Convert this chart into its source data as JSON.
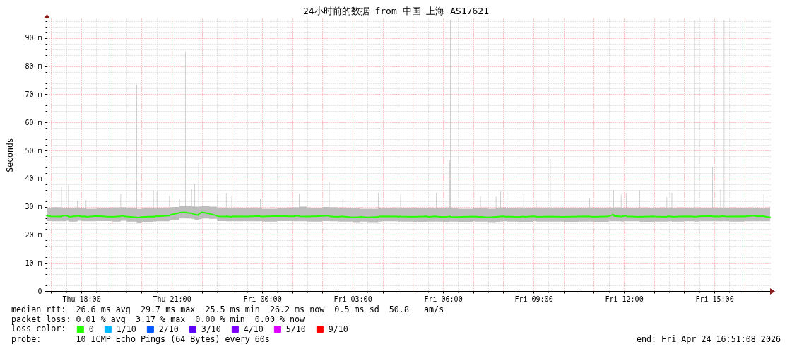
{
  "chart_data": {
    "type": "line",
    "title": "24小时前的数据 from 中国 上海 AS17621",
    "ylabel": "Seconds",
    "xlim": [
      "2026-04-23T16:51",
      "2026-04-24T16:51"
    ],
    "xticks": [
      {
        "value": "2026-04-23T17:00",
        "label": null
      },
      {
        "value": "2026-04-23T18:00",
        "label": "Thu 18:00"
      },
      {
        "value": "2026-04-23T19:00",
        "label": null
      },
      {
        "value": "2026-04-23T20:00",
        "label": null
      },
      {
        "value": "2026-04-23T21:00",
        "label": "Thu 21:00"
      },
      {
        "value": "2026-04-23T22:00",
        "label": null
      },
      {
        "value": "2026-04-23T23:00",
        "label": null
      },
      {
        "value": "2026-04-24T00:00",
        "label": "Fri 00:00"
      },
      {
        "value": "2026-04-24T01:00",
        "label": null
      },
      {
        "value": "2026-04-24T02:00",
        "label": null
      },
      {
        "value": "2026-04-24T03:00",
        "label": "Fri 03:00"
      },
      {
        "value": "2026-04-24T04:00",
        "label": null
      },
      {
        "value": "2026-04-24T05:00",
        "label": null
      },
      {
        "value": "2026-04-24T06:00",
        "label": "Fri 06:00"
      },
      {
        "value": "2026-04-24T07:00",
        "label": null
      },
      {
        "value": "2026-04-24T08:00",
        "label": null
      },
      {
        "value": "2026-04-24T09:00",
        "label": "Fri 09:00"
      },
      {
        "value": "2026-04-24T10:00",
        "label": null
      },
      {
        "value": "2026-04-24T11:00",
        "label": null
      },
      {
        "value": "2026-04-24T12:00",
        "label": "Fri 12:00"
      },
      {
        "value": "2026-04-24T13:00",
        "label": null
      },
      {
        "value": "2026-04-24T14:00",
        "label": null
      },
      {
        "value": "2026-04-24T15:00",
        "label": "Fri 15:00"
      },
      {
        "value": "2026-04-24T16:00",
        "label": null
      }
    ],
    "ylim": [
      0,
      97
    ],
    "yticks": [
      0,
      {
        "value": 10,
        "label": "10 m"
      },
      {
        "value": 20,
        "label": "20 m"
      },
      {
        "value": 30,
        "label": "30 m"
      },
      {
        "value": 40,
        "label": "40 m"
      },
      {
        "value": 50,
        "label": "50 m"
      },
      {
        "value": 60,
        "label": "60 m"
      },
      {
        "value": 70,
        "label": "70 m"
      },
      {
        "value": 80,
        "label": "80 m"
      },
      {
        "value": 90,
        "label": "90 m"
      }
    ],
    "grid": true,
    "legend": "bottom",
    "legend_title": "loss color:",
    "series": [
      {
        "name": "0",
        "color": "#26ff00",
        "x": [
          "2026-04-23T16:51",
          "2026-04-23T17:00",
          "2026-04-23T17:20",
          "2026-04-23T17:21",
          "2026-04-23T17:30",
          "2026-04-23T17:34",
          "2026-04-23T17:35",
          "2026-04-23T17:52",
          "2026-04-23T17:53",
          "2026-04-23T18:00",
          "2026-04-23T18:09",
          "2026-04-23T18:10",
          "2026-04-23T18:30",
          "2026-04-23T19:00",
          "2026-04-23T19:18",
          "2026-04-23T19:19",
          "2026-04-23T19:30",
          "2026-04-23T19:50",
          "2026-04-23T19:51",
          "2026-04-23T20:00",
          "2026-04-23T20:23",
          "2026-04-23T20:24",
          "2026-04-23T20:30",
          "2026-04-23T20:31",
          "2026-04-23T20:55",
          "2026-04-23T20:56",
          "2026-04-23T21:00",
          "2026-04-23T21:15",
          "2026-04-23T21:16",
          "2026-04-23T21:27",
          "2026-04-23T21:28",
          "2026-04-23T21:30",
          "2026-04-23T21:39",
          "2026-04-23T21:40",
          "2026-04-23T21:45",
          "2026-04-23T21:46",
          "2026-04-23T21:53",
          "2026-04-23T21:54",
          "2026-04-23T22:00",
          "2026-04-23T22:15",
          "2026-04-23T22:30",
          "2026-04-23T22:31",
          "2026-04-23T22:32",
          "2026-04-23T22:48",
          "2026-04-23T22:49",
          "2026-04-23T22:59",
          "2026-04-23T23:00",
          "2026-04-23T23:30",
          "2026-04-23T23:56",
          "2026-04-23T23:57",
          "2026-04-24T00:00",
          "2026-04-24T00:30",
          "2026-04-24T01:00",
          "2026-04-24T01:13",
          "2026-04-24T01:14",
          "2026-04-24T01:30",
          "2026-04-24T02:00",
          "2026-04-24T02:13",
          "2026-04-24T02:14",
          "2026-04-24T02:30",
          "2026-04-24T02:40",
          "2026-04-24T02:41",
          "2026-04-24T03:00",
          "2026-04-24T03:14",
          "2026-04-24T03:15",
          "2026-04-24T03:30",
          "2026-04-24T03:51",
          "2026-04-24T03:52",
          "2026-04-24T04:00",
          "2026-04-24T04:30",
          "2026-04-24T04:31",
          "2026-04-24T04:35",
          "2026-04-24T04:36",
          "2026-04-24T05:00",
          "2026-04-24T05:28",
          "2026-04-24T05:29",
          "2026-04-24T05:30",
          "2026-04-24T05:46",
          "2026-04-24T05:47",
          "2026-04-24T06:00",
          "2026-04-24T06:13",
          "2026-04-24T06:14",
          "2026-04-24T06:15",
          "2026-04-24T06:30",
          "2026-04-24T07:00",
          "2026-04-24T07:03",
          "2026-04-24T07:04",
          "2026-04-24T07:14",
          "2026-04-24T07:15",
          "2026-04-24T07:30",
          "2026-04-24T07:45",
          "2026-04-24T07:46",
          "2026-04-24T07:54",
          "2026-04-24T07:55",
          "2026-04-24T08:00",
          "2026-04-24T08:07",
          "2026-04-24T08:08",
          "2026-04-24T08:30",
          "2026-04-24T08:40",
          "2026-04-24T08:41",
          "2026-04-24T09:00",
          "2026-04-24T09:05",
          "2026-04-24T09:06",
          "2026-04-24T09:30",
          "2026-04-24T09:33",
          "2026-04-24T09:34",
          "2026-04-24T10:00",
          "2026-04-24T10:30",
          "2026-04-24T10:51",
          "2026-04-24T10:52",
          "2026-04-24T11:00",
          "2026-04-24T11:30",
          "2026-04-24T11:39",
          "2026-04-24T11:40",
          "2026-04-24T11:54",
          "2026-04-24T11:55",
          "2026-04-24T12:00",
          "2026-04-24T12:04",
          "2026-04-24T12:05",
          "2026-04-24T12:30",
          "2026-04-24T12:31",
          "2026-04-24T12:32",
          "2026-04-24T12:59",
          "2026-04-24T13:00",
          "2026-04-24T13:25",
          "2026-04-24T13:26",
          "2026-04-24T13:30",
          "2026-04-24T13:35",
          "2026-04-24T13:36",
          "2026-04-24T14:00",
          "2026-04-24T14:20",
          "2026-04-24T14:21",
          "2026-04-24T14:30",
          "2026-04-24T14:56",
          "2026-04-24T14:57",
          "2026-04-24T14:59",
          "2026-04-24T15:00",
          "2026-04-24T15:12",
          "2026-04-24T15:13",
          "2026-04-24T15:19",
          "2026-04-24T15:20",
          "2026-04-24T15:30",
          "2026-04-24T16:00",
          "2026-04-24T16:01",
          "2026-04-24T16:02",
          "2026-04-24T16:20",
          "2026-04-24T16:21",
          "2026-04-24T16:30",
          "2026-04-24T16:38",
          "2026-04-24T16:39",
          "2026-04-24T16:51"
        ],
        "values": [
          26.8,
          26.6,
          26.5,
          26.7,
          26.9,
          26.6,
          26.4,
          26.7,
          26.8,
          26.5,
          26.6,
          26.4,
          26.7,
          26.4,
          26.6,
          26.8,
          26.5,
          26.2,
          26.1,
          26.3,
          26.5,
          26.4,
          26.7,
          26.6,
          26.8,
          27.0,
          27.2,
          27.8,
          27.9,
          28.0,
          27.9,
          27.8,
          27.7,
          27.6,
          27.3,
          27.2,
          27.0,
          27.4,
          28.0,
          27.5,
          26.8,
          26.7,
          26.6,
          26.5,
          26.6,
          26.4,
          26.6,
          26.5,
          26.7,
          26.6,
          26.5,
          26.7,
          26.6,
          26.8,
          26.6,
          26.5,
          26.7,
          26.8,
          26.6,
          26.4,
          26.6,
          26.5,
          26.2,
          26.3,
          26.4,
          26.2,
          26.4,
          26.5,
          26.6,
          26.5,
          26.4,
          26.6,
          26.5,
          26.4,
          26.6,
          26.5,
          26.4,
          26.6,
          26.5,
          26.3,
          26.5,
          26.6,
          26.4,
          26.3,
          26.5,
          26.4,
          26.5,
          26.3,
          26.4,
          26.2,
          26.4,
          26.3,
          26.6,
          26.5,
          26.6,
          26.4,
          26.5,
          26.3,
          26.5,
          26.4,
          26.6,
          26.5,
          26.4,
          26.5,
          26.4,
          26.5,
          26.4,
          26.5,
          26.6,
          26.5,
          26.4,
          26.6,
          27.2,
          26.7,
          26.5,
          26.6,
          26.7,
          26.8,
          26.6,
          26.4,
          26.5,
          26.4,
          26.6,
          26.5,
          26.4,
          26.5,
          26.6,
          26.5,
          26.4,
          26.6,
          26.5,
          26.4,
          26.6,
          26.7,
          26.6,
          26.5,
          26.6,
          26.5,
          26.6,
          26.7,
          26.6,
          26.5,
          26.6,
          26.5,
          26.6,
          26.8,
          26.7,
          26.6,
          26.7,
          26.6,
          26.2
        ],
        "lower": [
          24.9,
          24.8,
          24.9,
          24.8,
          25.0,
          24.8,
          24.7,
          24.9,
          25.0,
          24.8,
          24.9,
          24.8,
          24.9,
          24.7,
          24.9,
          25.0,
          24.7,
          24.5,
          24.4,
          24.6,
          24.8,
          24.7,
          24.9,
          24.8,
          25.0,
          25.1,
          25.3,
          25.9,
          26.0,
          26.0,
          25.9,
          25.9,
          25.8,
          25.7,
          25.5,
          25.4,
          25.3,
          25.6,
          26.0,
          25.7,
          25.0,
          24.9,
          24.9,
          24.8,
          24.8,
          24.7,
          24.8,
          24.8,
          24.9,
          24.8,
          24.7,
          24.9,
          24.8,
          24.9,
          24.8,
          24.7,
          24.9,
          25.0,
          24.8,
          24.7,
          24.8,
          24.7,
          24.5,
          24.6,
          24.7,
          24.5,
          24.7,
          24.7,
          24.8,
          24.7,
          24.7,
          24.8,
          24.7,
          24.6,
          24.8,
          24.7,
          24.7,
          24.8,
          24.7,
          24.6,
          24.7,
          24.8,
          24.7,
          24.6,
          24.8,
          24.7,
          24.7,
          24.6,
          24.7,
          24.5,
          24.6,
          24.6,
          24.8,
          24.7,
          24.8,
          24.7,
          24.7,
          24.6,
          24.7,
          24.6,
          24.8,
          24.7,
          24.7,
          24.7,
          24.7,
          24.7,
          24.6,
          24.7,
          24.8,
          24.7,
          24.6,
          24.8,
          24.9,
          24.8,
          24.7,
          24.7,
          24.8,
          24.9,
          24.8,
          24.7,
          24.7,
          24.6,
          24.8,
          24.7,
          24.7,
          24.7,
          24.8,
          24.7,
          24.7,
          24.8,
          24.7,
          24.7,
          24.8,
          24.9,
          24.8,
          24.7,
          24.8,
          24.7,
          24.8,
          24.9,
          24.8,
          24.7,
          24.8,
          24.7,
          24.8,
          24.9,
          24.8,
          24.8,
          24.9,
          24.8,
          24.7
        ],
        "upper": [
          29.4,
          29.8,
          37.2,
          29.5,
          29.6,
          37.6,
          29.5,
          32.2,
          29.6,
          29.4,
          32.4,
          29.3,
          29.5,
          29.7,
          34.5,
          29.8,
          29.4,
          73.5,
          29.2,
          29.4,
          35.8,
          29.6,
          35.4,
          29.5,
          34,
          29.8,
          29.9,
          32.7,
          30.2,
          85.2,
          30.3,
          30.2,
          36.3,
          30.1,
          38,
          30.0,
          45.5,
          30.1,
          30.4,
          30.0,
          29.6,
          34.5,
          29.5,
          34.9,
          29.6,
          33.9,
          29.4,
          29.5,
          32.8,
          29.4,
          29.3,
          29.5,
          29.8,
          34.7,
          30.0,
          29.6,
          29.9,
          38.9,
          29.8,
          29.6,
          33,
          29.5,
          29.4,
          52,
          29.3,
          29.3,
          35,
          29.4,
          29.4,
          36.1,
          29.4,
          34.3,
          29.5,
          29.4,
          34.5,
          29.5,
          29.4,
          34.9,
          29.5,
          29.4,
          46.5,
          96.5,
          29.4,
          29.3,
          29.5,
          38.7,
          29.4,
          33.8,
          29.4,
          29.3,
          33.6,
          29.4,
          35.4,
          29.5,
          29.5,
          33.6,
          29.4,
          29.4,
          34.6,
          29.4,
          29.5,
          32.3,
          29.4,
          29.5,
          47,
          29.4,
          29.4,
          29.6,
          33.1,
          29.5,
          29.4,
          29.6,
          35.9,
          29.7,
          34.3,
          29.6,
          29.6,
          35,
          29.6,
          29.5,
          35.9,
          29.4,
          34.3,
          29.5,
          33.4,
          29.4,
          29.5,
          35,
          29.4,
          29.5,
          96.5,
          29.4,
          29.5,
          44,
          29.6,
          96.5,
          29.5,
          36.1,
          29.5,
          96.5,
          29.6,
          29.5,
          29.5,
          32.9,
          29.5,
          35.1,
          29.6,
          29.5,
          34.3,
          29.6,
          29.4
        ]
      },
      {
        "name": "1/10",
        "color": "#00b8ff"
      },
      {
        "name": "2/10",
        "color": "#0059ff"
      },
      {
        "name": "3/10",
        "color": "#5e00ff"
      },
      {
        "name": "4/10",
        "color": "#7e00ff"
      },
      {
        "name": "5/10",
        "color": "#dd00ff"
      },
      {
        "name": "9/10",
        "color": "#ff0000"
      }
    ],
    "annotations": [
      "median rtt:  26.6 ms avg  29.7 ms max  25.5 ms min  26.2 ms now  0.5 ms sd  50.8   am/s",
      "packet loss: 0.01 % avg  3.17 % max  0.00 % min  0.00 % now",
      "probe:       10 ICMP Echo Pings (64 Bytes) every 60s",
      "end: Fri Apr 24 16:51:08 2026"
    ]
  }
}
